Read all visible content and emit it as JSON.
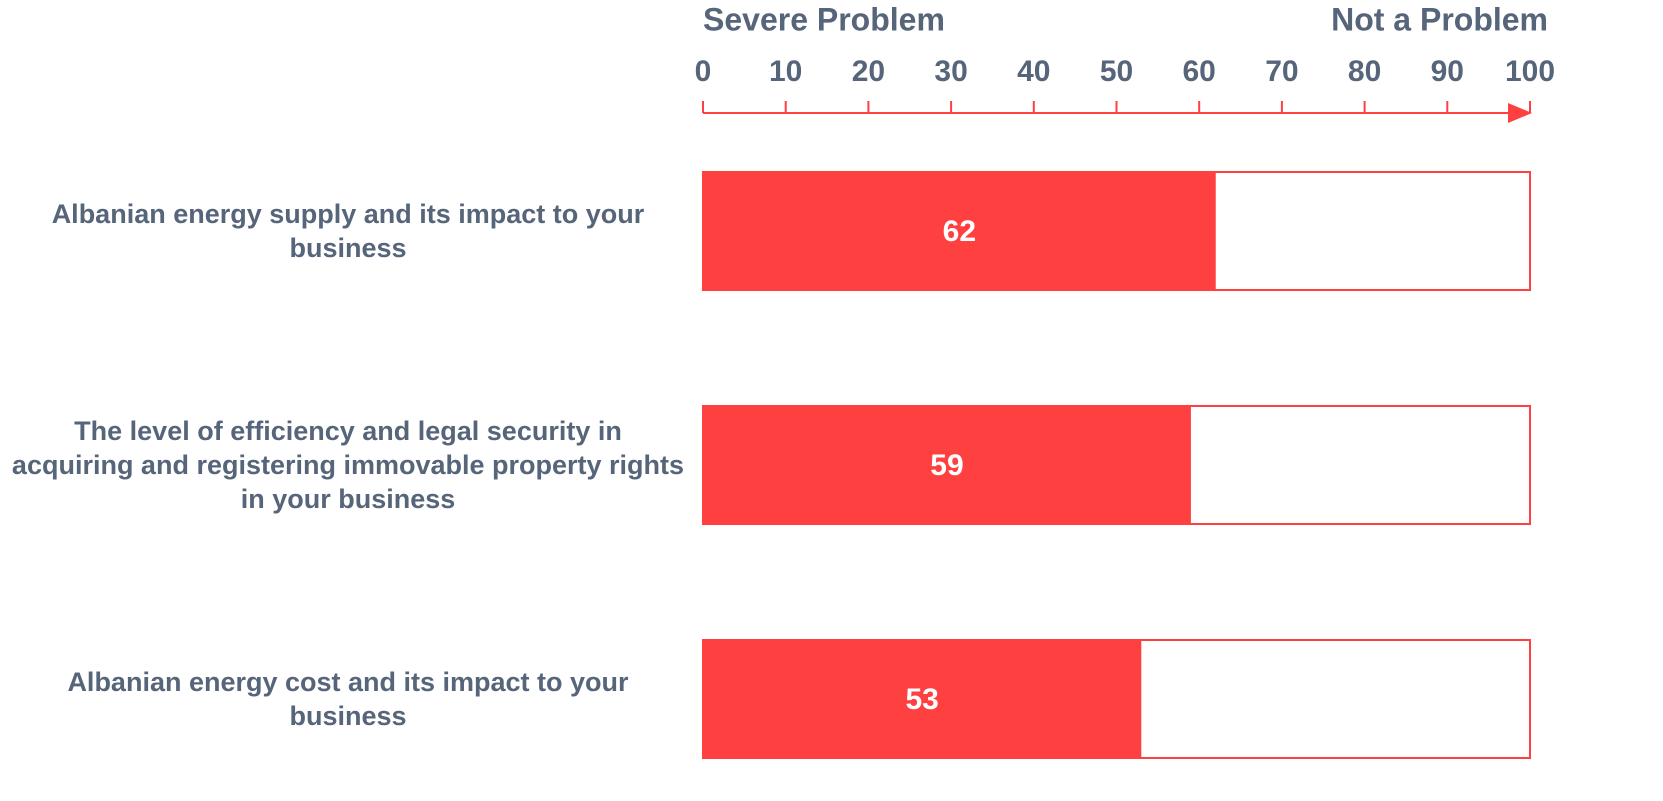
{
  "chart_data": {
    "type": "bar",
    "orientation": "horizontal",
    "annotations": [
      "Severe Problem",
      "Not a Problem"
    ],
    "categories": [
      "Albanian energy supply and its impact to your business",
      "The level of efficiency and legal security in acquiring and registering immovable property rights in your business",
      "Albanian energy cost and its impact to your business"
    ],
    "values": [
      62,
      59,
      53
    ],
    "color": "#ff4040",
    "xlim": [
      0,
      100
    ],
    "xticks": [
      0,
      10,
      20,
      30,
      40,
      50,
      60,
      70,
      80,
      90,
      100
    ]
  }
}
